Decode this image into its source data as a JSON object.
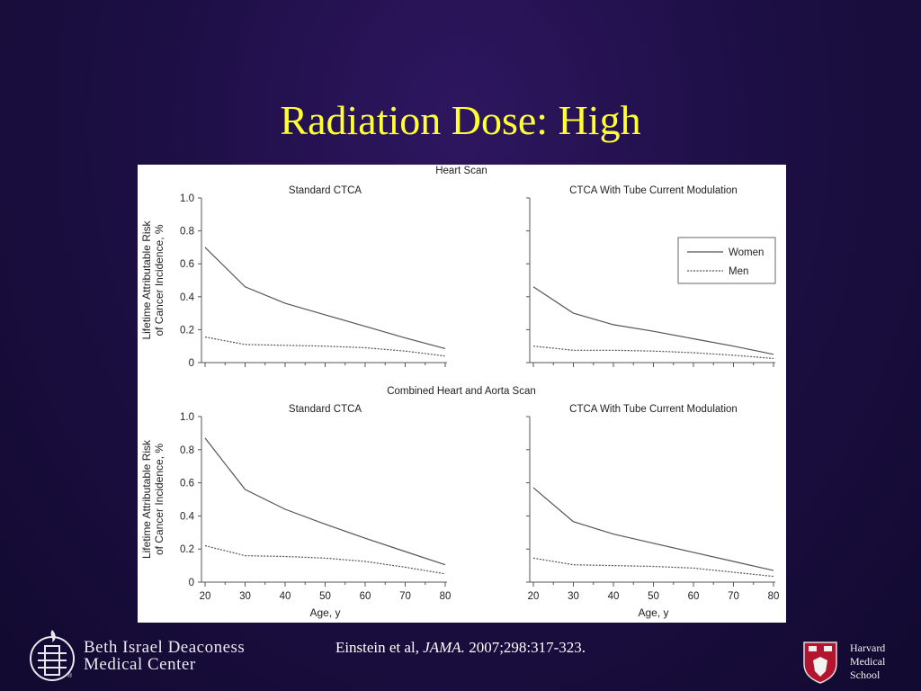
{
  "slide": {
    "title": "Radiation Dose: High",
    "citation": {
      "authors": "Einstein et al, ",
      "journal": "JAMA.",
      "details": " 2007;298:317-323."
    },
    "logo_left": {
      "line1": "Beth Israel Deaconess",
      "line2": "Medical Center",
      "registered": "®"
    },
    "logo_right": {
      "line1": "Harvard",
      "line2": "Medical",
      "line3": "School"
    }
  },
  "colors": {
    "background": "#1d0f45",
    "title": "#ffff33",
    "women_line": "#555555",
    "men_line": "#555555"
  },
  "chart_data": [
    {
      "type": "line",
      "section": "Heart  Scan",
      "title": "Standard CTCA",
      "ylabel": "Lifetime Attributable Risk of Cancer Incidence, %",
      "xlabel": "",
      "x": [
        20,
        30,
        40,
        50,
        60,
        70,
        80
      ],
      "xlim": [
        20,
        80
      ],
      "ylim": [
        0,
        1.0
      ],
      "yticks": [
        "0",
        "0.2",
        "0.4",
        "0.6",
        "0.8",
        "1.0"
      ],
      "xticks": [],
      "series": [
        {
          "name": "Women",
          "style": "solid",
          "values": [
            0.7,
            0.46,
            0.36,
            0.29,
            0.22,
            0.15,
            0.085
          ]
        },
        {
          "name": "Men",
          "style": "dotted",
          "values": [
            0.155,
            0.11,
            0.105,
            0.1,
            0.09,
            0.07,
            0.04
          ]
        }
      ]
    },
    {
      "type": "line",
      "section": "Heart  Scan",
      "title": "CTCA With Tube Current Modulation",
      "ylabel": "",
      "xlabel": "",
      "x": [
        20,
        30,
        40,
        50,
        60,
        70,
        80
      ],
      "xlim": [
        20,
        80
      ],
      "ylim": [
        0,
        1.0
      ],
      "yticks": [],
      "xticks": [],
      "legend": "top-right",
      "series": [
        {
          "name": "Women",
          "style": "solid",
          "values": [
            0.46,
            0.3,
            0.23,
            0.19,
            0.145,
            0.1,
            0.05
          ]
        },
        {
          "name": "Men",
          "style": "dotted",
          "values": [
            0.1,
            0.075,
            0.075,
            0.07,
            0.06,
            0.045,
            0.025
          ]
        }
      ]
    },
    {
      "type": "line",
      "section": "Combined Heart and Aorta Scan",
      "title": "Standard CTCA",
      "ylabel": "Lifetime Attributable Risk of Cancer Incidence, %",
      "xlabel": "Age, y",
      "x": [
        20,
        30,
        40,
        50,
        60,
        70,
        80
      ],
      "xlim": [
        20,
        80
      ],
      "ylim": [
        0,
        1.0
      ],
      "yticks": [
        "0",
        "0.2",
        "0.4",
        "0.6",
        "0.8",
        "1.0"
      ],
      "xticks": [
        "20",
        "30",
        "40",
        "50",
        "60",
        "70",
        "80"
      ],
      "series": [
        {
          "name": "Women",
          "style": "solid",
          "values": [
            0.87,
            0.56,
            0.44,
            0.35,
            0.265,
            0.185,
            0.105
          ]
        },
        {
          "name": "Men",
          "style": "dotted",
          "values": [
            0.22,
            0.16,
            0.155,
            0.145,
            0.125,
            0.09,
            0.05
          ]
        }
      ]
    },
    {
      "type": "line",
      "section": "Combined Heart and Aorta Scan",
      "title": "CTCA With Tube Current Modulation",
      "ylabel": "",
      "xlabel": "Age, y",
      "x": [
        20,
        30,
        40,
        50,
        60,
        70,
        80
      ],
      "xlim": [
        20,
        80
      ],
      "ylim": [
        0,
        1.0
      ],
      "yticks": [],
      "xticks": [
        "20",
        "30",
        "40",
        "50",
        "60",
        "70",
        "80"
      ],
      "series": [
        {
          "name": "Women",
          "style": "solid",
          "values": [
            0.57,
            0.365,
            0.29,
            0.235,
            0.18,
            0.125,
            0.07
          ]
        },
        {
          "name": "Men",
          "style": "dotted",
          "values": [
            0.145,
            0.105,
            0.1,
            0.095,
            0.085,
            0.06,
            0.035
          ]
        }
      ]
    }
  ]
}
